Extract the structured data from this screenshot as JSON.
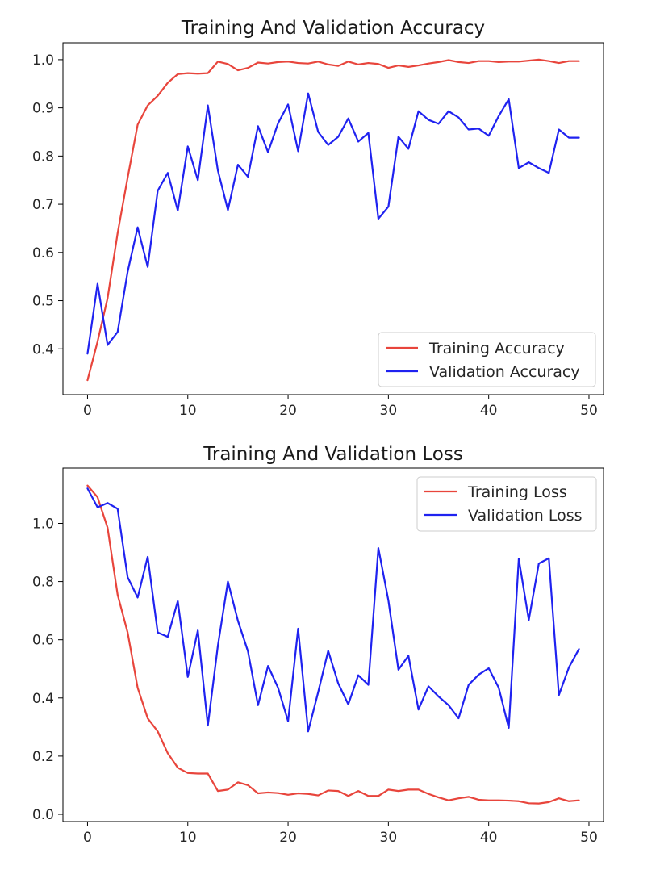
{
  "chart_data": [
    {
      "type": "line",
      "title": "Training And Validation Accuracy",
      "xlabel": "",
      "ylabel": "",
      "xlim": [
        -2.45,
        51.45
      ],
      "ylim": [
        0.305,
        1.035
      ],
      "xticks": [
        0,
        10,
        20,
        30,
        40,
        50
      ],
      "yticks": [
        0.4,
        0.5,
        0.6,
        0.7,
        0.8,
        0.9,
        1.0
      ],
      "ytick_labels": [
        "0.4",
        "0.5",
        "0.6",
        "0.7",
        "0.8",
        "0.9",
        "1.0"
      ],
      "legend": "lower-right",
      "grid": false,
      "x": [
        0,
        1,
        2,
        3,
        4,
        5,
        6,
        7,
        8,
        9,
        10,
        11,
        12,
        13,
        14,
        15,
        16,
        17,
        18,
        19,
        20,
        21,
        22,
        23,
        24,
        25,
        26,
        27,
        28,
        29,
        30,
        31,
        32,
        33,
        34,
        35,
        36,
        37,
        38,
        39,
        40,
        41,
        42,
        43,
        44,
        45,
        46,
        47,
        48,
        49
      ],
      "series": [
        {
          "name": "Training Accuracy",
          "color": "#e8453c",
          "values": [
            0.335,
            0.415,
            0.505,
            0.64,
            0.755,
            0.865,
            0.905,
            0.925,
            0.952,
            0.97,
            0.972,
            0.971,
            0.972,
            0.996,
            0.991,
            0.978,
            0.983,
            0.994,
            0.992,
            0.995,
            0.996,
            0.993,
            0.992,
            0.996,
            0.99,
            0.987,
            0.996,
            0.99,
            0.993,
            0.991,
            0.983,
            0.988,
            0.985,
            0.988,
            0.992,
            0.995,
            0.999,
            0.995,
            0.993,
            0.997,
            0.997,
            0.995,
            0.996,
            0.996,
            0.998,
            1.0,
            0.997,
            0.993,
            0.997,
            0.997
          ]
        },
        {
          "name": "Validation Accuracy",
          "color": "#1f22f0",
          "values": [
            0.39,
            0.535,
            0.408,
            0.435,
            0.56,
            0.652,
            0.57,
            0.728,
            0.765,
            0.687,
            0.82,
            0.75,
            0.905,
            0.77,
            0.688,
            0.782,
            0.757,
            0.862,
            0.808,
            0.868,
            0.907,
            0.81,
            0.93,
            0.85,
            0.823,
            0.84,
            0.878,
            0.83,
            0.848,
            0.67,
            0.695,
            0.84,
            0.815,
            0.893,
            0.875,
            0.867,
            0.893,
            0.88,
            0.855,
            0.857,
            0.842,
            0.883,
            0.918,
            0.775,
            0.787,
            0.775,
            0.765,
            0.855,
            0.838,
            0.838
          ]
        }
      ]
    },
    {
      "type": "line",
      "title": "Training And Validation Loss",
      "xlabel": "",
      "ylabel": "",
      "xlim": [
        -2.45,
        51.45
      ],
      "ylim": [
        -0.025,
        1.19
      ],
      "xticks": [
        0,
        10,
        20,
        30,
        40,
        50
      ],
      "yticks": [
        0.0,
        0.2,
        0.4,
        0.6,
        0.8,
        1.0
      ],
      "ytick_labels": [
        "0.0",
        "0.2",
        "0.4",
        "0.6",
        "0.8",
        "1.0"
      ],
      "legend": "upper-right",
      "grid": false,
      "x": [
        0,
        1,
        2,
        3,
        4,
        5,
        6,
        7,
        8,
        9,
        10,
        11,
        12,
        13,
        14,
        15,
        16,
        17,
        18,
        19,
        20,
        21,
        22,
        23,
        24,
        25,
        26,
        27,
        28,
        29,
        30,
        31,
        32,
        33,
        34,
        35,
        36,
        37,
        38,
        39,
        40,
        41,
        42,
        43,
        44,
        45,
        46,
        47,
        48,
        49
      ],
      "series": [
        {
          "name": "Training Loss",
          "color": "#e8453c",
          "values": [
            1.13,
            1.09,
            0.985,
            0.755,
            0.625,
            0.435,
            0.33,
            0.285,
            0.21,
            0.16,
            0.142,
            0.14,
            0.14,
            0.08,
            0.085,
            0.11,
            0.1,
            0.072,
            0.075,
            0.073,
            0.067,
            0.072,
            0.07,
            0.065,
            0.082,
            0.08,
            0.063,
            0.08,
            0.063,
            0.063,
            0.085,
            0.08,
            0.085,
            0.085,
            0.07,
            0.058,
            0.048,
            0.055,
            0.06,
            0.05,
            0.048,
            0.048,
            0.047,
            0.045,
            0.038,
            0.037,
            0.042,
            0.055,
            0.045,
            0.048
          ]
        },
        {
          "name": "Validation Loss",
          "color": "#1f22f0",
          "values": [
            1.12,
            1.055,
            1.07,
            1.05,
            0.815,
            0.745,
            0.885,
            0.625,
            0.61,
            0.733,
            0.472,
            0.632,
            0.305,
            0.58,
            0.8,
            0.665,
            0.56,
            0.375,
            0.51,
            0.435,
            0.32,
            0.638,
            0.285,
            0.42,
            0.562,
            0.45,
            0.378,
            0.478,
            0.445,
            0.915,
            0.735,
            0.497,
            0.545,
            0.36,
            0.44,
            0.405,
            0.375,
            0.33,
            0.445,
            0.48,
            0.502,
            0.435,
            0.297,
            0.878,
            0.668,
            0.862,
            0.88,
            0.41,
            0.505,
            0.568
          ]
        }
      ]
    }
  ]
}
